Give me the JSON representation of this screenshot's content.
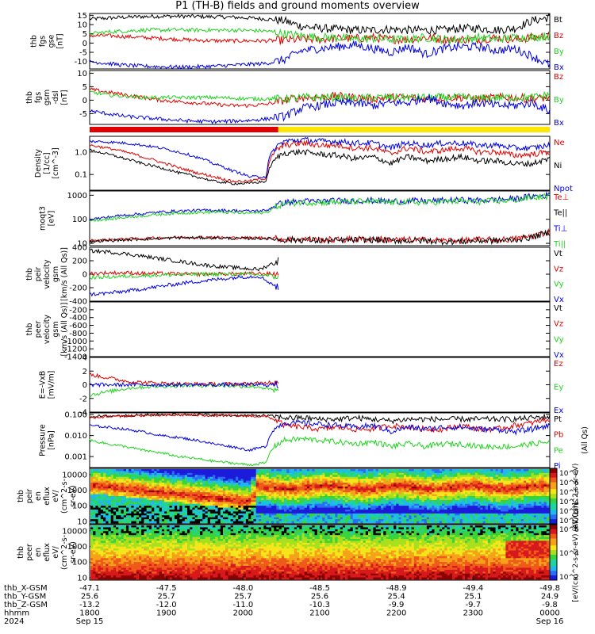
{
  "title": "P1 (TH-B) fields and ground moments overview",
  "colors": {
    "black": "#000000",
    "red": "#e00000",
    "green": "#1fd31f",
    "blue": "#0000e0",
    "yellow": "#ffe600"
  },
  "mode_bar": {
    "label": "",
    "red_until_frac": 0.41,
    "yellow_after_frac": 0.41
  },
  "chart_data": [
    {
      "type": "line",
      "panel": "fgs_gse",
      "ylabel_lines": [
        "thb",
        "fgs",
        "gse",
        "[nT]"
      ],
      "ylim": [
        -14,
        16
      ],
      "yticks": [
        15,
        10,
        5,
        0,
        -5,
        -10
      ],
      "ytick_labels": [
        "15",
        "10",
        "5",
        "0",
        "-5",
        "-10"
      ],
      "series": [
        {
          "name": "Bt",
          "color": "#000000",
          "profile": [
            13,
            13.5,
            14,
            14.3,
            14.5,
            14.5,
            14.4,
            14.2,
            14,
            13.6,
            13,
            12,
            9,
            8,
            7.5,
            7,
            7,
            7.5,
            7,
            7,
            7,
            8,
            8,
            7,
            8,
            12,
            14
          ]
        },
        {
          "name": "Bz",
          "color": "#e00000",
          "profile": [
            4,
            4,
            3.5,
            3,
            2.5,
            2,
            1.5,
            1.3,
            1.2,
            1.2,
            1.2,
            1.5,
            2,
            2,
            2.5,
            2.5,
            3,
            2,
            2,
            3,
            2,
            2,
            2,
            3,
            2,
            3,
            4
          ]
        },
        {
          "name": "By",
          "color": "#1fd31f",
          "profile": [
            5,
            6,
            6.5,
            7,
            7,
            7.2,
            7,
            7,
            7,
            6.8,
            6.5,
            5,
            4,
            3,
            3,
            2,
            2.5,
            2,
            2,
            3,
            2,
            2,
            3,
            2,
            3,
            3,
            4
          ]
        },
        {
          "name": "Bx",
          "color": "#0000e0",
          "profile": [
            -10,
            -11,
            -12,
            -12.5,
            -12.8,
            -13,
            -12.8,
            -12.5,
            -12,
            -11.5,
            -11,
            -9,
            -4,
            -3,
            -2,
            -1,
            -3,
            -5,
            -2,
            -6,
            -3,
            -2,
            -2,
            -4,
            -3,
            -7,
            -12
          ]
        }
      ]
    },
    {
      "type": "line",
      "panel": "fgs_gsm_dsl",
      "ylabel_lines": [
        "thb",
        "fgs",
        "gsm",
        "-dsl",
        "[nT]"
      ],
      "ylim": [
        -9,
        11
      ],
      "yticks": [
        10,
        5,
        0,
        -5
      ],
      "ytick_labels": [
        "10",
        "5",
        "0",
        "-5"
      ],
      "series": [
        {
          "name": "Bz",
          "color": "#e00000",
          "profile": [
            4,
            3,
            2,
            1,
            0,
            -0.5,
            -1,
            -1.5,
            -2,
            -2,
            -1.5,
            0,
            1,
            1,
            1.5,
            1,
            0.5,
            1,
            1,
            0.5,
            1,
            1,
            0.5,
            1,
            1,
            0.5,
            1
          ]
        },
        {
          "name": "By",
          "color": "#1fd31f",
          "profile": [
            3,
            2,
            1.5,
            1,
            1,
            1,
            1,
            1,
            0.8,
            0.5,
            0.5,
            0.5,
            1,
            1,
            1,
            0.5,
            1,
            1,
            1,
            1,
            1,
            1,
            0.5,
            1,
            1,
            1,
            2
          ]
        },
        {
          "name": "Bx",
          "color": "#0000e0",
          "profile": [
            -4,
            -5,
            -6,
            -6.5,
            -7,
            -7.5,
            -7.8,
            -8,
            -7.8,
            -7.5,
            -7,
            -6,
            -3,
            -2,
            -1,
            -1,
            -2,
            -1,
            -1,
            1,
            -1,
            -2,
            -1,
            -2,
            -2,
            -1,
            -4
          ]
        }
      ]
    },
    {
      "type": "line",
      "panel": "density",
      "ylabel_lines": [
        "Density",
        "[1/cc]",
        "[cm^-3]"
      ],
      "scale": "log",
      "ylim": [
        0.02,
        5
      ],
      "yticks": [
        1.0,
        0.1
      ],
      "ytick_labels": [
        "1.0",
        "0.1"
      ],
      "series": [
        {
          "name": "Ne",
          "color": "#e00000",
          "profile": [
            2,
            1.5,
            1,
            0.6,
            0.35,
            0.2,
            0.12,
            0.08,
            0.05,
            0.05,
            0.07,
            2,
            2.5,
            2,
            2,
            1.5,
            1.5,
            0.8,
            1.5,
            1,
            1.2,
            1.5,
            1,
            1,
            0.7,
            0.8,
            1
          ]
        },
        {
          "name": "Ni",
          "color": "#000000",
          "profile": [
            1.2,
            0.8,
            0.5,
            0.3,
            0.2,
            0.12,
            0.08,
            0.05,
            0.04,
            0.04,
            0.05,
            0.9,
            1,
            0.8,
            0.7,
            0.5,
            0.6,
            0.3,
            0.6,
            0.4,
            0.5,
            0.6,
            0.4,
            0.4,
            0.3,
            0.3,
            0.5
          ]
        },
        {
          "name": "Npot",
          "color": "#0000e0",
          "profile": [
            3,
            2.8,
            2.5,
            2,
            1.5,
            1,
            0.6,
            0.3,
            0.15,
            0.08,
            0.08,
            3,
            3.5,
            3,
            3,
            2.5,
            2.5,
            1.5,
            2.5,
            2,
            2.5,
            2.5,
            2,
            2,
            1.5,
            1.5,
            2
          ]
        }
      ]
    },
    {
      "type": "line",
      "panel": "temperature",
      "ylabel_lines": [
        "moqt3",
        "[eV]"
      ],
      "scale": "log",
      "ylim": [
        8,
        1500
      ],
      "yticks": [
        1000,
        100,
        10
      ],
      "ytick_labels": [
        "1000",
        "100",
        "10"
      ],
      "series": [
        {
          "name": "Te⊥",
          "color": "#e00000",
          "profile": [
            13,
            14,
            15,
            16,
            17,
            18,
            18,
            18,
            17,
            17,
            17,
            15,
            15,
            14,
            14,
            15,
            15,
            14,
            14,
            14,
            13,
            13,
            14,
            14,
            15,
            20,
            30
          ]
        },
        {
          "name": "Te||",
          "color": "#000000",
          "profile": [
            12,
            13,
            14,
            15,
            16,
            17,
            17,
            17,
            16,
            16,
            16,
            14,
            14,
            13,
            13,
            14,
            14,
            13,
            13,
            13,
            12,
            12,
            13,
            13,
            14,
            18,
            28
          ]
        },
        {
          "name": "Ti⊥",
          "color": "#0000e0",
          "profile": [
            100,
            120,
            150,
            170,
            200,
            220,
            230,
            240,
            230,
            220,
            230,
            500,
            550,
            560,
            580,
            600,
            600,
            550,
            580,
            560,
            600,
            620,
            600,
            650,
            700,
            900,
            1000
          ]
        },
        {
          "name": "Ti||",
          "color": "#1fd31f",
          "profile": [
            90,
            100,
            120,
            140,
            160,
            180,
            190,
            200,
            190,
            180,
            190,
            450,
            500,
            500,
            520,
            550,
            550,
            500,
            520,
            500,
            540,
            560,
            540,
            580,
            620,
            800,
            900
          ]
        }
      ]
    },
    {
      "type": "line",
      "panel": "peir_velocity",
      "ylabel_lines": [
        "thb",
        "peir",
        "velocity",
        "gsm",
        "[km/s (All Qs)]"
      ],
      "ylim": [
        -400,
        400
      ],
      "yticks": [
        400,
        200,
        0,
        -200,
        -400
      ],
      "ytick_labels": [
        "400",
        "200",
        "0",
        "-200",
        "-400"
      ],
      "x_end_frac": 0.41,
      "series": [
        {
          "name": "Vt",
          "color": "#000000",
          "profile": [
            350,
            330,
            300,
            260,
            220,
            180,
            140,
            110,
            90,
            70,
            200
          ]
        },
        {
          "name": "Vz",
          "color": "#e00000",
          "profile": [
            10,
            20,
            20,
            10,
            10,
            0,
            0,
            5,
            5,
            10,
            0
          ]
        },
        {
          "name": "Vy",
          "color": "#1fd31f",
          "profile": [
            -50,
            -40,
            -30,
            -20,
            -10,
            -5,
            0,
            0,
            0,
            -10,
            -30
          ]
        },
        {
          "name": "Vx",
          "color": "#0000e0",
          "profile": [
            -300,
            -280,
            -250,
            -210,
            -170,
            -130,
            -100,
            -70,
            -40,
            -30,
            -200
          ]
        }
      ]
    },
    {
      "type": "line",
      "panel": "peer_velocity",
      "ylabel_lines": [
        "thb",
        "peer",
        "velocity",
        "gsm",
        "[km/s (All Qs)]"
      ],
      "ylim": [
        -1400,
        0
      ],
      "yticks": [
        -200,
        -400,
        -600,
        -800,
        -1000,
        -1200,
        -1400
      ],
      "ytick_labels": [
        "-200",
        "-400",
        "-600",
        "-800",
        "-1000",
        "-1200",
        "-1400"
      ],
      "legend": [
        "Vt",
        "Vz",
        "Vy",
        "Vx"
      ],
      "series": []
    },
    {
      "type": "line",
      "panel": "efield",
      "ylabel_lines": [
        "E=-VxB",
        "[mV/m]"
      ],
      "ylim": [
        -4,
        4
      ],
      "yticks": [
        4,
        2,
        0,
        -2,
        -4
      ],
      "ytick_labels": [
        "4",
        "2",
        "0",
        "-2",
        "-4"
      ],
      "x_end_frac": 0.41,
      "series": [
        {
          "name": "Ez",
          "color": "#e00000",
          "profile": [
            1.5,
            1,
            0.5,
            0.3,
            0.2,
            0.1,
            0.1,
            0.1,
            0.1,
            0.2,
            0.5
          ]
        },
        {
          "name": "Ey",
          "color": "#1fd31f",
          "profile": [
            -1.5,
            -1,
            -0.5,
            -0.3,
            -0.2,
            -0.1,
            -0.1,
            -0.1,
            -0.2,
            -0.3,
            -1
          ]
        },
        {
          "name": "Ex",
          "color": "#0000e0",
          "profile": [
            0,
            0,
            0,
            0,
            0,
            0,
            0,
            0,
            0,
            0,
            0
          ]
        }
      ]
    },
    {
      "type": "line",
      "panel": "pressure",
      "ylabel_lines": [
        "Pressure",
        "[nPa]"
      ],
      "scale": "log",
      "ylim": [
        0.0003,
        0.12
      ],
      "yticks": [
        0.1,
        0.01,
        0.001
      ],
      "ytick_labels": [
        "0.100",
        "0.010",
        "0.001"
      ],
      "series": [
        {
          "name": "Pt",
          "color": "#000000",
          "profile": [
            0.08,
            0.085,
            0.09,
            0.095,
            0.1,
            0.1,
            0.1,
            0.095,
            0.09,
            0.09,
            0.09,
            0.07,
            0.07,
            0.06,
            0.06,
            0.07,
            0.06,
            0.05,
            0.06,
            0.06,
            0.06,
            0.06,
            0.06,
            0.06,
            0.06,
            0.07,
            0.08
          ]
        },
        {
          "name": "Pb",
          "color": "#e00000",
          "profile": [
            0.07,
            0.08,
            0.085,
            0.09,
            0.09,
            0.095,
            0.095,
            0.09,
            0.09,
            0.085,
            0.08,
            0.03,
            0.025,
            0.02,
            0.025,
            0.02,
            0.02,
            0.03,
            0.025,
            0.02,
            0.02,
            0.03,
            0.02,
            0.02,
            0.03,
            0.04,
            0.06
          ]
        },
        {
          "name": "Pe",
          "color": "#1fd31f",
          "profile": [
            0.006,
            0.004,
            0.003,
            0.002,
            0.0015,
            0.001,
            0.0008,
            0.0006,
            0.0005,
            0.0004,
            0.0005,
            0.006,
            0.007,
            0.006,
            0.005,
            0.004,
            0.005,
            0.003,
            0.004,
            0.003,
            0.004,
            0.004,
            0.003,
            0.003,
            0.003,
            0.004,
            0.005
          ]
        },
        {
          "name": "Pi",
          "color": "#0000e0",
          "profile": [
            0.03,
            0.025,
            0.02,
            0.015,
            0.01,
            0.008,
            0.006,
            0.004,
            0.003,
            0.002,
            0.003,
            0.04,
            0.04,
            0.035,
            0.03,
            0.025,
            0.03,
            0.015,
            0.025,
            0.02,
            0.025,
            0.025,
            0.02,
            0.02,
            0.015,
            0.02,
            0.03
          ]
        }
      ],
      "side_label": "(All Qs)"
    },
    {
      "type": "heatmap",
      "panel": "peir_en_eflux",
      "ylabel_lines": [
        "thb",
        "peir",
        "en",
        "eflux",
        "eV/",
        "(cm^2-s-",
        "sr-eV)"
      ],
      "scale": "log",
      "ylim": [
        7,
        25000
      ],
      "yticks": [
        10000,
        1000,
        100,
        10
      ],
      "ytick_labels": [
        "10000",
        "1000",
        "100",
        "10"
      ]
    },
    {
      "type": "heatmap",
      "panel": "peer_en_eflux",
      "ylabel_lines": [
        "thb",
        "peer",
        "en",
        "eflux",
        "eV/",
        "(cm^2-s-",
        "sr-eV)"
      ],
      "scale": "log",
      "ylim": [
        7,
        25000
      ],
      "yticks": [
        10000,
        1000,
        100,
        10
      ],
      "ytick_labels": [
        "10000",
        "1000",
        "100",
        "10"
      ]
    }
  ],
  "colorbar_top": {
    "labels": [
      "10^7",
      "10^6",
      "10^5",
      "10^4",
      "10^3",
      "10^2"
    ],
    "side_label": "eV/(cm^2-s-sr-eV)"
  },
  "colorbar_bottom": {
    "labels": [
      "10^6",
      "10^4",
      "10^2"
    ],
    "side_label": "[eV/(cm^2-s-sr-eV) (All Qs)]"
  },
  "x_axis": {
    "rows": [
      {
        "label": "thb_X-GSM",
        "values": [
          "-47.1",
          "-47.5",
          "-48.0",
          "-48.5",
          "-48.9",
          "-49.4",
          "-49.8"
        ]
      },
      {
        "label": "thb_Y-GSM",
        "values": [
          "25.6",
          "25.7",
          "25.7",
          "25.6",
          "25.4",
          "25.1",
          "24.9"
        ]
      },
      {
        "label": "thb_Z-GSM",
        "values": [
          "-13.2",
          "-12.0",
          "-11.0",
          "-10.3",
          "-9.9",
          "-9.7",
          "-9.8"
        ]
      },
      {
        "label": "hhmm",
        "values": [
          "1800",
          "1900",
          "2000",
          "2100",
          "2200",
          "2300",
          "0000"
        ]
      },
      {
        "label": "2024",
        "values": [
          "Sep 15",
          "",
          "",
          "",
          "",
          "",
          "Sep 16"
        ]
      }
    ]
  }
}
